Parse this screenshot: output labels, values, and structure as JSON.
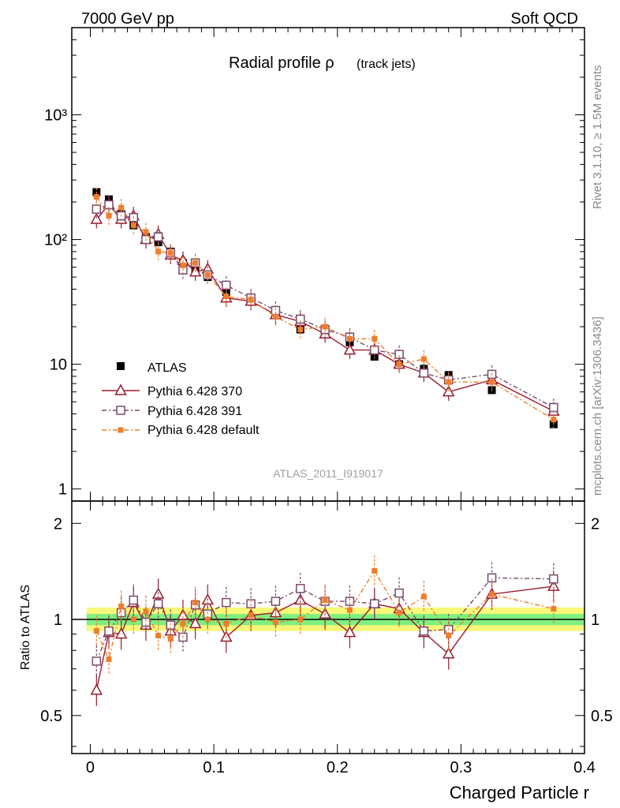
{
  "header": {
    "left": "7000 GeV pp",
    "right": "Soft QCD"
  },
  "side_labels": {
    "top": "Rivet 3.1.10, ≥ 1.5M events",
    "bottom": "mcplots.cern.ch [arXiv:1306.3436]"
  },
  "colors": {
    "atlas": "#000000",
    "p370": "#9b1b2e",
    "p391": "#7a4a6e",
    "pdefault": "#f07d2a",
    "band_inner": "#7ef07e",
    "band_outer": "#f7f77a"
  },
  "chart_data": [
    {
      "type": "scatter",
      "panel": "main",
      "title": "Radial profile ρ",
      "subtitle": "(track jets)",
      "analysis_tag": "ATLAS_2011_I919017",
      "xlabel": "Charged Particle r",
      "ylabel": "",
      "xlim": [
        -0.015,
        0.4
      ],
      "ylim": [
        0.8,
        5000
      ],
      "yscale": "log",
      "ytick_labels": [
        "1",
        "10",
        "10²",
        "10³"
      ],
      "ytick_values": [
        1,
        10,
        100,
        1000
      ],
      "legend_position": "lower-left",
      "x": [
        0.005,
        0.015,
        0.025,
        0.035,
        0.045,
        0.055,
        0.065,
        0.075,
        0.085,
        0.095,
        0.11,
        0.13,
        0.15,
        0.17,
        0.19,
        0.21,
        0.23,
        0.25,
        0.27,
        0.29,
        0.325,
        0.375
      ],
      "series": [
        {
          "name": "ATLAS",
          "marker": "filled-square",
          "color_key": "atlas",
          "values": [
            240,
            210,
            160,
            130,
            105,
            95,
            80,
            65,
            58,
            50,
            38,
            32,
            26,
            19,
            17.5,
            15,
            11.5,
            10,
            9.2,
            8.2,
            6.2,
            3.3
          ]
        },
        {
          "name": "Pythia 6.428 370",
          "marker": "open-triangle",
          "color_key": "p370",
          "line": "solid",
          "values": [
            145,
            190,
            145,
            155,
            100,
            110,
            75,
            68,
            55,
            58,
            34,
            32,
            25,
            22,
            17.5,
            13,
            13,
            10,
            8.5,
            6,
            7.5,
            4.2
          ]
        },
        {
          "name": "Pythia 6.428 391",
          "marker": "open-square",
          "color_key": "p391",
          "line": "dashdot",
          "values": [
            175,
            190,
            155,
            150,
            100,
            105,
            78,
            57,
            65,
            52,
            43,
            34,
            27,
            23,
            19,
            16.5,
            13,
            12,
            8.5,
            7.5,
            8.3,
            4.5
          ]
        },
        {
          "name": "Pythia 6.428 default",
          "marker": "small-filled-square",
          "color_key": "pdefault",
          "line": "dashdot",
          "values": [
            220,
            155,
            180,
            130,
            115,
            80,
            78,
            62,
            65,
            52,
            35,
            33,
            24,
            19,
            20,
            16,
            16,
            10,
            11,
            7.2,
            7.2,
            3.6
          ]
        }
      ]
    },
    {
      "type": "scatter",
      "panel": "ratio",
      "ylabel": "Ratio to ATLAS",
      "xlabel": "Charged Particle r",
      "xlim": [
        -0.015,
        0.4
      ],
      "ylim": [
        0.38,
        2.35
      ],
      "yscale": "log",
      "ytick_labels": [
        "0.5",
        "1",
        "2"
      ],
      "ytick_values": [
        0.5,
        1,
        2
      ],
      "xtick_labels": [
        "0",
        "0.1",
        "0.2",
        "0.3",
        "0.4"
      ],
      "xtick_values": [
        0,
        0.1,
        0.2,
        0.3,
        0.4
      ],
      "x": [
        0.005,
        0.015,
        0.025,
        0.035,
        0.045,
        0.055,
        0.065,
        0.075,
        0.085,
        0.095,
        0.11,
        0.13,
        0.15,
        0.17,
        0.19,
        0.21,
        0.23,
        0.25,
        0.27,
        0.29,
        0.325,
        0.375
      ],
      "series": [
        {
          "name": "Pythia 6.428 370",
          "color_key": "p370",
          "values": [
            0.6,
            0.91,
            0.9,
            1.13,
            0.96,
            1.2,
            0.92,
            1.03,
            0.97,
            1.15,
            0.88,
            1.03,
            1.05,
            1.15,
            1.04,
            0.91,
            1.12,
            1.08,
            0.91,
            0.78,
            1.2,
            1.27
          ]
        },
        {
          "name": "Pythia 6.428 391",
          "color_key": "p391",
          "values": [
            0.74,
            0.92,
            1.05,
            1.15,
            0.98,
            1.12,
            0.96,
            0.88,
            1.11,
            1.04,
            1.13,
            1.12,
            1.14,
            1.25,
            1.14,
            1.14,
            1.12,
            1.21,
            0.92,
            0.93,
            1.35,
            1.34
          ]
        },
        {
          "name": "Pythia 6.428 default",
          "color_key": "pdefault",
          "values": [
            0.92,
            0.75,
            1.1,
            1.0,
            1.06,
            0.89,
            0.87,
            0.97,
            1.13,
            1.0,
            0.97,
            1.03,
            0.98,
            1.0,
            1.15,
            1.07,
            1.42,
            1.05,
            1.18,
            0.89,
            1.2,
            1.08
          ]
        }
      ]
    }
  ]
}
